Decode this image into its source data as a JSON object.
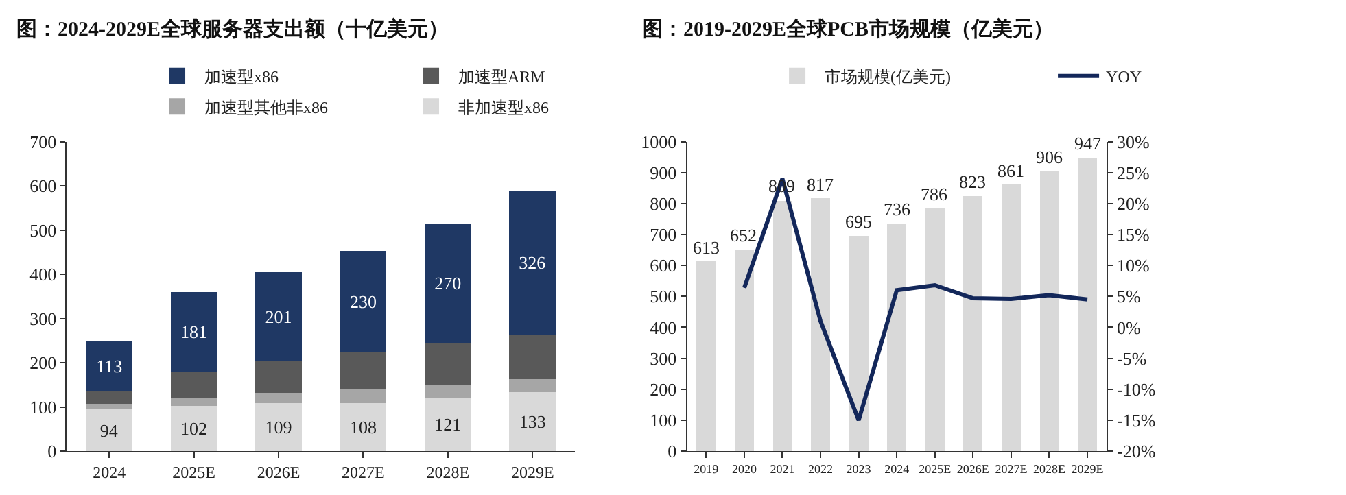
{
  "chart_data": [
    {
      "type": "bar",
      "title": "图：2024-2029E全球服务器支出额（十亿美元）",
      "stacked": true,
      "legend": "top",
      "categories": [
        "2024",
        "2025E",
        "2026E",
        "2027E",
        "2028E",
        "2029E"
      ],
      "ylim": [
        0,
        700
      ],
      "yticks": [
        0,
        100,
        200,
        300,
        400,
        500,
        600,
        700
      ],
      "series": [
        {
          "name": "非加速型x86",
          "color": "#d9d9d9",
          "values": [
            94,
            102,
            109,
            108,
            121,
            133
          ],
          "value_labels": [
            "94",
            "102",
            "109",
            "108",
            "121",
            "133"
          ]
        },
        {
          "name": "加速型其他非x86",
          "color": "#a6a6a6",
          "values": [
            13,
            18,
            23,
            32,
            30,
            30
          ]
        },
        {
          "name": "加速型ARM",
          "color": "#595959",
          "values": [
            29,
            59,
            72,
            83,
            94,
            100
          ]
        },
        {
          "name": "加速型x86",
          "color": "#1f3864",
          "values": [
            113,
            181,
            201,
            230,
            270,
            326
          ],
          "value_labels": [
            "113",
            "181",
            "201",
            "230",
            "270",
            "326"
          ]
        }
      ]
    },
    {
      "type": "bar",
      "title": "图：2019-2029E全球PCB市场规模（亿美元）",
      "legend": "top",
      "categories": [
        "2019",
        "2020",
        "2021",
        "2022",
        "2023",
        "2024",
        "2025E",
        "2026E",
        "2027E",
        "2028E",
        "2029E"
      ],
      "ylim": [
        0,
        1000
      ],
      "yticks": [
        0,
        100,
        200,
        300,
        400,
        500,
        600,
        700,
        800,
        900,
        1000
      ],
      "y2lim": [
        -20,
        30
      ],
      "y2ticks": [
        {
          "value": -20,
          "label": "-20%"
        },
        {
          "value": -15,
          "label": "-15%"
        },
        {
          "value": -10,
          "label": "-10%"
        },
        {
          "value": -5,
          "label": "-5%"
        },
        {
          "value": 0,
          "label": "0%"
        },
        {
          "value": 5,
          "label": "5%"
        },
        {
          "value": 10,
          "label": "10%"
        },
        {
          "value": 15,
          "label": "15%"
        },
        {
          "value": 20,
          "label": "20%"
        },
        {
          "value": 25,
          "label": "25%"
        },
        {
          "value": 30,
          "label": "30%"
        }
      ],
      "series": [
        {
          "name": "市场规模(亿美元)",
          "type": "bar",
          "color": "#d9d9d9",
          "values": [
            613,
            652,
            809,
            817,
            695,
            736,
            786,
            823,
            861,
            906,
            947
          ],
          "value_labels": [
            "613",
            "652",
            "809",
            "817",
            "695",
            "736",
            "786",
            "823",
            "861",
            "906",
            "947"
          ]
        },
        {
          "name": "YOY",
          "type": "line",
          "axis": "y2",
          "color": "#13275a",
          "marker": "none",
          "line_style": "solid",
          "values": [
            null,
            6.4,
            24,
            1,
            -15,
            6,
            6.8,
            4.7,
            4.6,
            5.2,
            4.5
          ]
        }
      ]
    }
  ]
}
